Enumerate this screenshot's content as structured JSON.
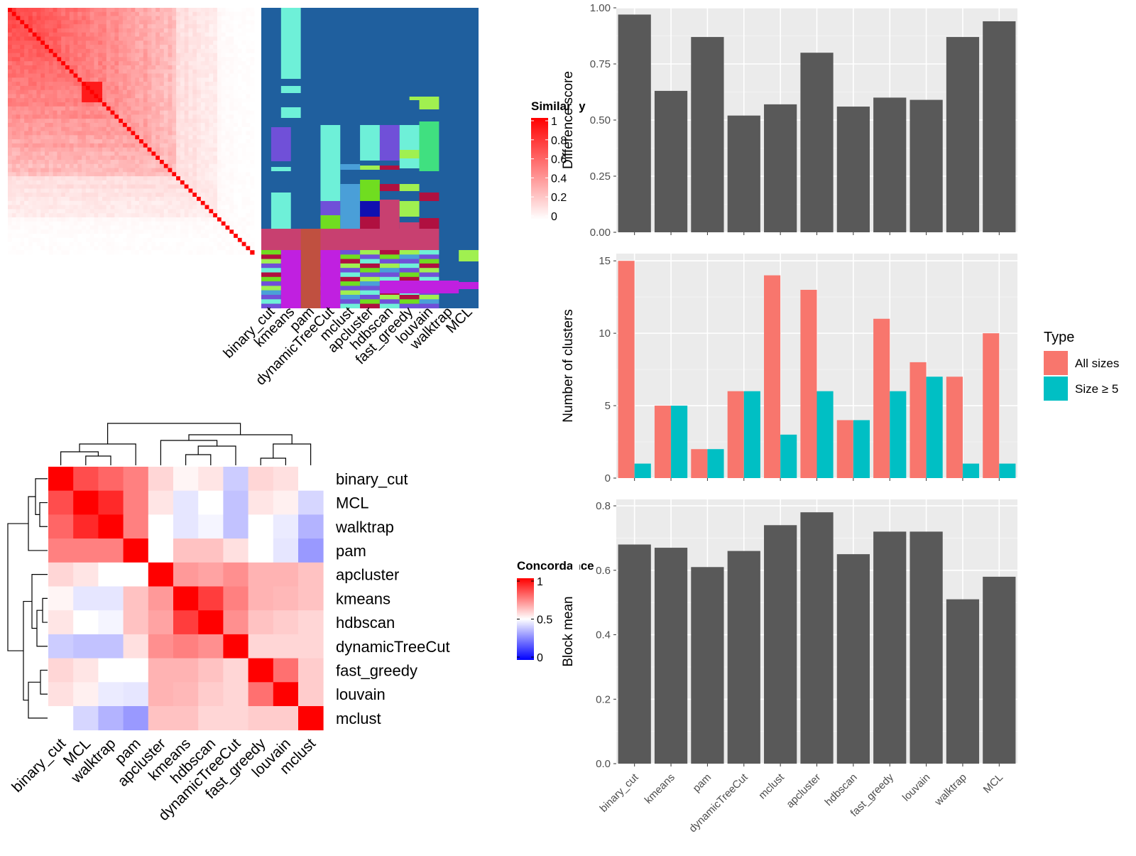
{
  "methods_ordered": [
    "binary_cut",
    "kmeans",
    "pam",
    "dynamicTreeCut",
    "mclust",
    "apcluster",
    "hdbscan",
    "fast_greedy",
    "louvain",
    "walktrap",
    "MCL"
  ],
  "similarity_heatmap": {
    "legend_title": "Similarity",
    "legend_ticks": [
      "1",
      "0.8",
      "0.6",
      "0.4",
      "0.2",
      "0"
    ]
  },
  "concordance_heatmap": {
    "legend_title": "Concordance",
    "legend_ticks": [
      "1",
      "0.5",
      "0"
    ],
    "order": [
      "binary_cut",
      "MCL",
      "walktrap",
      "pam",
      "apcluster",
      "kmeans",
      "hdbscan",
      "dynamicTreeCut",
      "fast_greedy",
      "louvain",
      "mclust"
    ],
    "matrix": [
      [
        1.0,
        0.85,
        0.8,
        0.75,
        0.58,
        0.52,
        0.55,
        0.4,
        0.58,
        0.56,
        0.5
      ],
      [
        0.85,
        1.0,
        0.92,
        0.75,
        0.55,
        0.45,
        0.5,
        0.38,
        0.55,
        0.53,
        0.42
      ],
      [
        0.8,
        0.92,
        1.0,
        0.75,
        0.5,
        0.45,
        0.48,
        0.38,
        0.5,
        0.46,
        0.35
      ],
      [
        0.75,
        0.75,
        0.75,
        1.0,
        0.5,
        0.62,
        0.62,
        0.56,
        0.5,
        0.45,
        0.3
      ],
      [
        0.58,
        0.55,
        0.5,
        0.5,
        1.0,
        0.7,
        0.68,
        0.72,
        0.65,
        0.65,
        0.62
      ],
      [
        0.52,
        0.45,
        0.45,
        0.62,
        0.7,
        1.0,
        0.88,
        0.75,
        0.65,
        0.64,
        0.62
      ],
      [
        0.55,
        0.5,
        0.48,
        0.62,
        0.68,
        0.88,
        1.0,
        0.72,
        0.62,
        0.6,
        0.58
      ],
      [
        0.4,
        0.38,
        0.38,
        0.56,
        0.72,
        0.75,
        0.72,
        1.0,
        0.58,
        0.58,
        0.58
      ],
      [
        0.58,
        0.55,
        0.5,
        0.5,
        0.65,
        0.65,
        0.62,
        0.58,
        1.0,
        0.78,
        0.6
      ],
      [
        0.56,
        0.53,
        0.46,
        0.45,
        0.65,
        0.64,
        0.6,
        0.58,
        0.78,
        1.0,
        0.6
      ],
      [
        0.5,
        0.42,
        0.35,
        0.3,
        0.62,
        0.62,
        0.58,
        0.58,
        0.6,
        0.6,
        1.0
      ]
    ]
  },
  "chart_data": [
    {
      "type": "bar",
      "title": "",
      "xlabel": "",
      "ylabel": "Difference score",
      "categories": [
        "binary_cut",
        "kmeans",
        "pam",
        "dynamicTreeCut",
        "mclust",
        "apcluster",
        "hdbscan",
        "fast_greedy",
        "louvain",
        "walktrap",
        "MCL"
      ],
      "values": [
        0.97,
        0.63,
        0.87,
        0.52,
        0.57,
        0.8,
        0.56,
        0.6,
        0.59,
        0.87,
        0.94
      ],
      "ylim": [
        0,
        1.0
      ],
      "yticks": [
        "0.00",
        "0.25",
        "0.50",
        "0.75",
        "1.00"
      ],
      "color": "#595959",
      "grid": true
    },
    {
      "type": "bar",
      "title": "",
      "xlabel": "",
      "ylabel": "Number of clusters",
      "categories": [
        "binary_cut",
        "kmeans",
        "pam",
        "dynamicTreeCut",
        "mclust",
        "apcluster",
        "hdbscan",
        "fast_greedy",
        "louvain",
        "walktrap",
        "MCL"
      ],
      "series": [
        {
          "name": "All sizes",
          "color": "#F8766D",
          "values": [
            15,
            5,
            2,
            6,
            14,
            13,
            4,
            11,
            8,
            7,
            10
          ]
        },
        {
          "name": "Size ≥ 5",
          "color": "#00BFC4",
          "values": [
            1,
            5,
            2,
            6,
            3,
            6,
            4,
            6,
            7,
            1,
            1
          ]
        }
      ],
      "ylim": [
        0,
        15.5
      ],
      "yticks": [
        "0",
        "5",
        "10",
        "15"
      ],
      "legend_title": "Type",
      "legend_position": "right",
      "grid": true
    },
    {
      "type": "bar",
      "title": "",
      "xlabel": "",
      "ylabel": "Block mean",
      "categories": [
        "binary_cut",
        "kmeans",
        "pam",
        "dynamicTreeCut",
        "mclust",
        "apcluster",
        "hdbscan",
        "fast_greedy",
        "louvain",
        "walktrap",
        "MCL"
      ],
      "values": [
        0.68,
        0.67,
        0.61,
        0.66,
        0.74,
        0.78,
        0.65,
        0.72,
        0.72,
        0.51,
        0.58
      ],
      "ylim": [
        0,
        0.82
      ],
      "yticks": [
        "0.0",
        "0.2",
        "0.4",
        "0.6",
        "0.8"
      ],
      "color": "#595959",
      "grid": true
    }
  ],
  "colors": {
    "panel_bg": "#EBEBEB",
    "grid_major": "#FFFFFF",
    "bar_gray": "#595959",
    "heat_red": "#FF0000",
    "heat_blue": "#0000FF",
    "cluster_background": "#1F5F9E"
  }
}
